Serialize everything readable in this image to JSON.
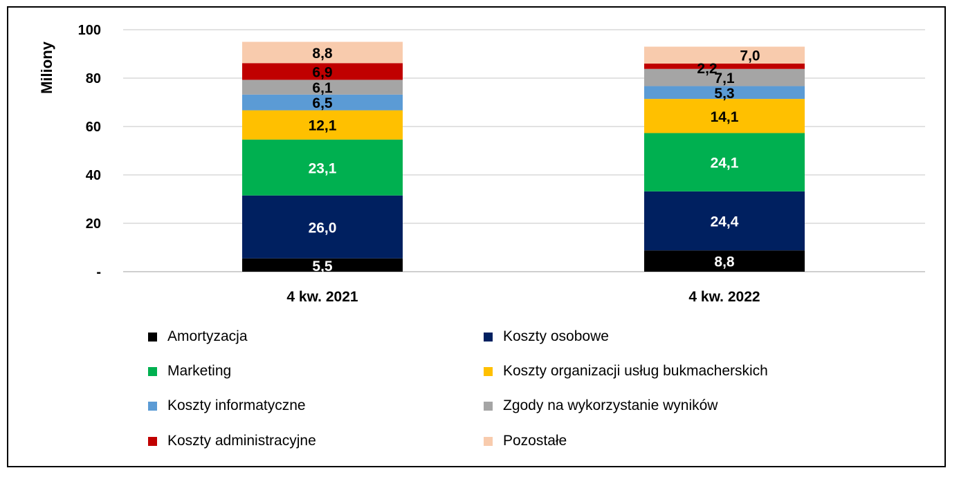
{
  "chart_data": {
    "type": "bar",
    "stacked": true,
    "ylabel": "Miliony",
    "ylim": [
      0,
      100
    ],
    "yticks": [
      {
        "value": 0,
        "label": "-"
      },
      {
        "value": 20,
        "label": "20"
      },
      {
        "value": 40,
        "label": "40"
      },
      {
        "value": 60,
        "label": "60"
      },
      {
        "value": 80,
        "label": "80"
      },
      {
        "value": 100,
        "label": "100"
      }
    ],
    "grid": true,
    "legend_position": "bottom",
    "categories": [
      "4 kw. 2021",
      "4 kw. 2022"
    ],
    "series": [
      {
        "name": "Amortyzacja",
        "color": "#000000",
        "label_color": "#ffffff",
        "values": [
          5.5,
          8.8
        ],
        "labels": [
          "5,5",
          "8,8"
        ]
      },
      {
        "name": "Koszty osobowe",
        "color": "#002060",
        "label_color": "#ffffff",
        "values": [
          26.0,
          24.4
        ],
        "labels": [
          "26,0",
          "24,4"
        ]
      },
      {
        "name": "Marketing",
        "color": "#00B050",
        "label_color": "#ffffff",
        "values": [
          23.1,
          24.1
        ],
        "labels": [
          "23,1",
          "24,1"
        ]
      },
      {
        "name": "Koszty organizacji usług bukmacherskich",
        "color": "#FFC000",
        "label_color": "#000000",
        "values": [
          12.1,
          14.1
        ],
        "labels": [
          "12,1",
          "14,1"
        ]
      },
      {
        "name": "Koszty informatyczne",
        "color": "#5B9BD5",
        "label_color": "#000000",
        "values": [
          6.5,
          5.3
        ],
        "labels": [
          "6,5",
          "5,3"
        ]
      },
      {
        "name": "Zgody na wykorzystanie wyników",
        "color": "#A5A5A5",
        "label_color": "#000000",
        "values": [
          6.1,
          7.1
        ],
        "labels": [
          "6,1",
          "7,1"
        ]
      },
      {
        "name": "Koszty administracyjne",
        "color": "#C00000",
        "label_color": "#000000",
        "values": [
          6.9,
          2.2
        ],
        "labels": [
          "6,9",
          "2,2"
        ]
      },
      {
        "name": "Pozostałe",
        "color": "#F8CBAD",
        "label_color": "#000000",
        "values": [
          8.8,
          7.0
        ],
        "labels": [
          "8,8",
          "7,0"
        ]
      }
    ]
  }
}
